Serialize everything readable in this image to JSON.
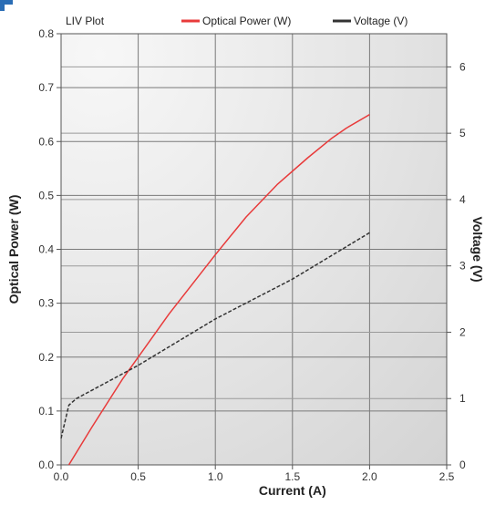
{
  "colors": {
    "optical": "#e83a3a",
    "voltage": "#333333",
    "accent": "#2a6db5"
  },
  "chart_data": {
    "type": "line",
    "title": "LIV Plot",
    "xlabel": "Current (A)",
    "ylabel": "Optical Power (W)",
    "y2label": "Voltage (V)",
    "xlim": [
      0,
      2.5
    ],
    "ylim": [
      0,
      0.8
    ],
    "y2lim": [
      0,
      6.5
    ],
    "grid": true,
    "legend_position": "top",
    "x_ticks": [
      "0.0",
      "0.5",
      "1.0",
      "1.5",
      "2.0",
      "2.5"
    ],
    "y_ticks": [
      "0.0",
      "0.1",
      "0.2",
      "0.3",
      "0.4",
      "0.5",
      "0.6",
      "0.7",
      "0.8"
    ],
    "y2_ticks": [
      "0",
      "1",
      "2",
      "3",
      "4",
      "5",
      "6"
    ],
    "series": [
      {
        "name": "Optical Power (W)",
        "axis": "left",
        "color": "#e83a3a",
        "x": [
          0.05,
          0.2,
          0.4,
          0.5,
          0.7,
          1.0,
          1.2,
          1.4,
          1.6,
          1.75,
          1.85,
          2.0
        ],
        "y": [
          0.0,
          0.07,
          0.16,
          0.2,
          0.28,
          0.39,
          0.46,
          0.52,
          0.57,
          0.605,
          0.625,
          0.65
        ]
      },
      {
        "name": "Voltage (V)",
        "axis": "right",
        "color": "#333333",
        "x": [
          0.0,
          0.02,
          0.05,
          0.1,
          0.3,
          0.5,
          1.0,
          1.5,
          2.0
        ],
        "y": [
          0.4,
          0.6,
          0.9,
          1.0,
          1.25,
          1.5,
          2.2,
          2.8,
          3.5
        ]
      }
    ]
  }
}
